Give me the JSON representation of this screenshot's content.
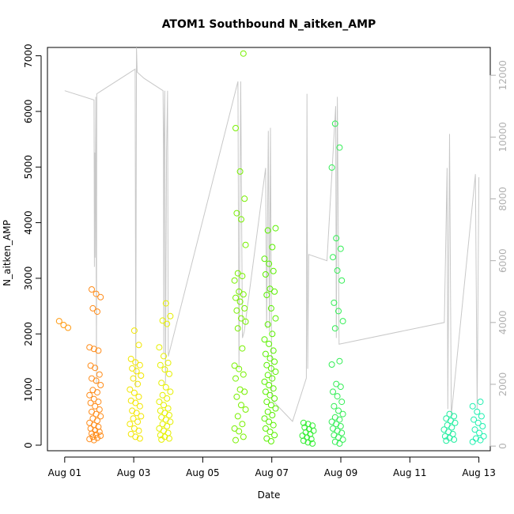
{
  "chart_data": {
    "type": "scatter",
    "title": "ATOM1 Southbound N_aitken_AMP",
    "xlabel": "Date",
    "ylabel": "N_aitken_AMP",
    "x_range": [
      "2023-07-31 12:00",
      "2023-08-13 08:00"
    ],
    "x_ticks": [
      "Aug 01",
      "Aug 03",
      "Aug 05",
      "Aug 07",
      "Aug 09",
      "Aug 11",
      "Aug 13"
    ],
    "x_tick_days": [
      1,
      3,
      5,
      7,
      9,
      11,
      13
    ],
    "ylim": [
      -100,
      7150
    ],
    "y_ticks": [
      0,
      1000,
      2000,
      3000,
      4000,
      5000,
      6000,
      7000
    ],
    "y2lim": [
      -150,
      12900
    ],
    "y2_ticks": [
      0,
      2000,
      4000,
      6000,
      8000,
      10000,
      12000
    ],
    "grid": false,
    "legend": "none",
    "line_color": "#c8c8c8",
    "series": [
      {
        "day": 1.0,
        "color": "#ff9a10",
        "points": [
          2230,
          2160,
          2110
        ]
      },
      {
        "day": 1.88,
        "color": "#ff8c1a",
        "points": [
          2800,
          2720,
          2660,
          2460,
          2400,
          1760,
          1730,
          1700,
          1430,
          1390,
          1270,
          1200,
          1160,
          1080,
          990,
          950,
          900,
          830,
          780,
          760,
          700,
          640,
          600,
          560,
          520,
          480,
          440,
          400,
          360,
          330,
          300,
          270,
          240,
          210,
          190,
          170,
          150,
          130,
          110,
          90
        ]
      },
      {
        "day": 3.05,
        "color": "#f2e600",
        "points": [
          2060,
          1800,
          1550,
          1490,
          1440,
          1380,
          1330,
          1250,
          1200,
          1100,
          1000,
          940,
          870,
          800,
          760,
          700,
          620,
          580,
          520,
          480,
          420,
          380,
          300,
          260,
          200,
          150,
          120
        ]
      },
      {
        "day": 3.9,
        "color": "#e6f000",
        "points": [
          2550,
          2320,
          2240,
          2180,
          1760,
          1600,
          1480,
          1440,
          1360,
          1280,
          1120,
          1040,
          960,
          900,
          840,
          780,
          720,
          660,
          620,
          580,
          540,
          500,
          460,
          420,
          380,
          340,
          300,
          260,
          220,
          180,
          150,
          120,
          100
        ]
      },
      {
        "day": 6.08,
        "color": "#78f000",
        "points": [
          7040,
          5700,
          4920,
          4430,
          4170,
          4060,
          3600,
          3090,
          3040,
          2960,
          2760,
          2710,
          2650,
          2580,
          2460,
          2420,
          2280,
          2220,
          2100,
          1740,
          1430,
          1370,
          1270,
          1200,
          1000,
          960,
          870,
          720,
          640,
          520,
          380,
          300,
          250,
          150,
          90
        ]
      },
      {
        "day": 6.95,
        "color": "#5af000",
        "points": [
          3900,
          3860,
          3560,
          3350,
          3260,
          3130,
          3070,
          2810,
          2760,
          2700,
          2460,
          2280,
          2170,
          2000,
          1900,
          1820,
          1700,
          1640,
          1560,
          1500,
          1440,
          1380,
          1320,
          1260,
          1200,
          1140,
          1080,
          1020,
          960,
          900,
          840,
          780,
          720,
          660,
          600,
          540,
          480,
          420,
          360,
          300,
          240,
          180,
          120,
          70
        ]
      },
      {
        "day": 8.05,
        "color": "#33ee33",
        "points": [
          400,
          380,
          350,
          320,
          290,
          260,
          230,
          200,
          170,
          140,
          110,
          80,
          50,
          30
        ]
      },
      {
        "day": 8.9,
        "color": "#33ee55",
        "points": [
          5780,
          5350,
          4990,
          3720,
          3530,
          3380,
          3140,
          2960,
          2560,
          2410,
          2230,
          2100,
          1510,
          1450,
          1100,
          1050,
          960,
          880,
          780,
          700,
          620,
          560,
          500,
          460,
          420,
          380,
          340,
          300,
          260,
          220,
          180,
          140,
          100,
          60,
          30
        ]
      },
      {
        "day": 12.15,
        "color": "#22eea0",
        "points": [
          560,
          520,
          480,
          440,
          400,
          360,
          320,
          280,
          240,
          200,
          160,
          130,
          100,
          80
        ]
      },
      {
        "day": 12.98,
        "color": "#20f0b0",
        "points": [
          780,
          700,
          600,
          520,
          460,
          400,
          340,
          280,
          220,
          160,
          120,
          90,
          60
        ]
      }
    ],
    "secondary_line": {
      "label": "",
      "points": [
        [
          1.0,
          11500
        ],
        [
          1.85,
          11200
        ],
        [
          1.86,
          5800
        ],
        [
          1.87,
          9500
        ],
        [
          1.88,
          6100
        ],
        [
          1.9,
          11300
        ],
        [
          1.92,
          2000
        ],
        [
          1.93,
          11400
        ],
        [
          3.04,
          12200
        ],
        [
          3.06,
          1900
        ],
        [
          3.08,
          12900
        ],
        [
          3.1,
          12100
        ],
        [
          3.3,
          11900
        ],
        [
          3.85,
          11500
        ],
        [
          3.86,
          9500
        ],
        [
          3.87,
          3000
        ],
        [
          3.88,
          10000
        ],
        [
          3.9,
          11500
        ],
        [
          3.92,
          2000
        ],
        [
          3.95,
          9500
        ],
        [
          3.98,
          11500
        ],
        [
          4.0,
          2900
        ],
        [
          6.02,
          11800
        ],
        [
          6.05,
          2500
        ],
        [
          6.1,
          11800
        ],
        [
          6.15,
          3500
        ],
        [
          6.2,
          3700
        ],
        [
          6.82,
          9000
        ],
        [
          6.85,
          3800
        ],
        [
          6.9,
          10200
        ],
        [
          6.93,
          3700
        ],
        [
          6.96,
          10300
        ],
        [
          7.0,
          1500
        ],
        [
          7.6,
          800
        ],
        [
          8.0,
          2200
        ],
        [
          8.02,
          11400
        ],
        [
          8.04,
          2500
        ],
        [
          8.07,
          6200
        ],
        [
          8.6,
          6000
        ],
        [
          8.85,
          11000
        ],
        [
          8.87,
          3500
        ],
        [
          8.9,
          11300
        ],
        [
          8.95,
          3300
        ],
        [
          12.0,
          4000
        ],
        [
          12.08,
          9000
        ],
        [
          12.1,
          1200
        ],
        [
          12.15,
          10100
        ],
        [
          12.2,
          1000
        ],
        [
          12.9,
          8800
        ],
        [
          12.95,
          1200
        ],
        [
          13.0,
          8700
        ]
      ]
    }
  }
}
